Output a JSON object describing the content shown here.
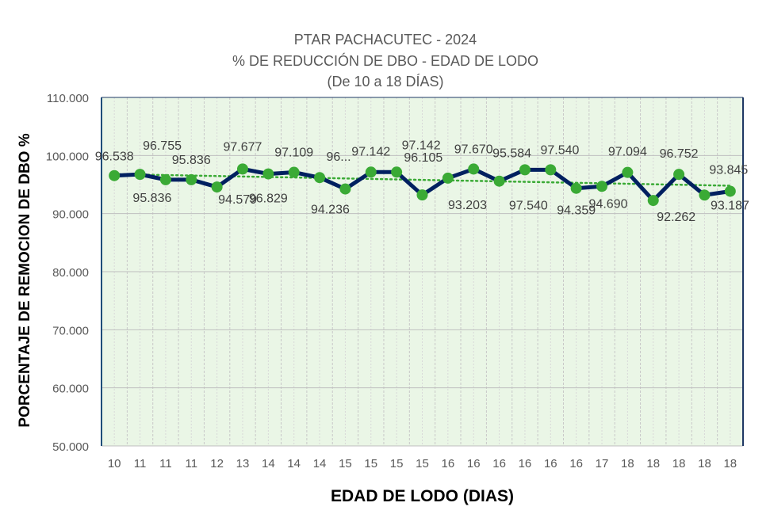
{
  "chart_data": {
    "type": "line",
    "title": [
      "PTAR PACHACUTEC - 2024",
      "% DE REDUCCIÓN DE DBO - EDAD DE LODO",
      "(De 10 a 18 DÍAS)"
    ],
    "xlabel": "EDAD DE LODO (DIAS)",
    "ylabel": "PORCENTAJE DE REMOCION DE DBO %",
    "ylim": [
      50,
      110
    ],
    "yticks": [
      "50.000",
      "60.000",
      "70.000",
      "80.000",
      "90.000",
      "100.000",
      "110.000"
    ],
    "categories": [
      "10",
      "11",
      "11",
      "11",
      "12",
      "13",
      "14",
      "14",
      "14",
      "15",
      "15",
      "15",
      "15",
      "16",
      "16",
      "16",
      "16",
      "16",
      "16",
      "17",
      "18",
      "18",
      "18",
      "18",
      "18"
    ],
    "values": [
      96.538,
      96.755,
      95.836,
      95.836,
      94.579,
      97.677,
      96.829,
      97.109,
      96.2,
      94.236,
      97.142,
      97.142,
      93.203,
      96.105,
      97.67,
      95.584,
      97.54,
      97.54,
      94.359,
      94.69,
      97.094,
      92.262,
      96.752,
      93.187,
      93.845
    ],
    "data_labels": [
      "96.538",
      "96.755",
      "95.836",
      "95.836",
      "94.579",
      "97.677",
      "96.829",
      "97.109",
      "96...",
      "94.236",
      "97.142",
      "97.142",
      "93.203",
      "96.105",
      "97.670",
      "95.584",
      "97.540",
      "97.540",
      "94.359",
      "94.690",
      "97.094",
      "92.262",
      "96.752",
      "93.187",
      "93.845"
    ],
    "trendline": {
      "type": "linear",
      "start": 96.8,
      "end": 94.8
    },
    "grid": true,
    "colors": {
      "line": "#002060",
      "marker": "#3aaa35",
      "trend": "#3aaa35",
      "plot_bg": "#eaf6e6"
    }
  }
}
